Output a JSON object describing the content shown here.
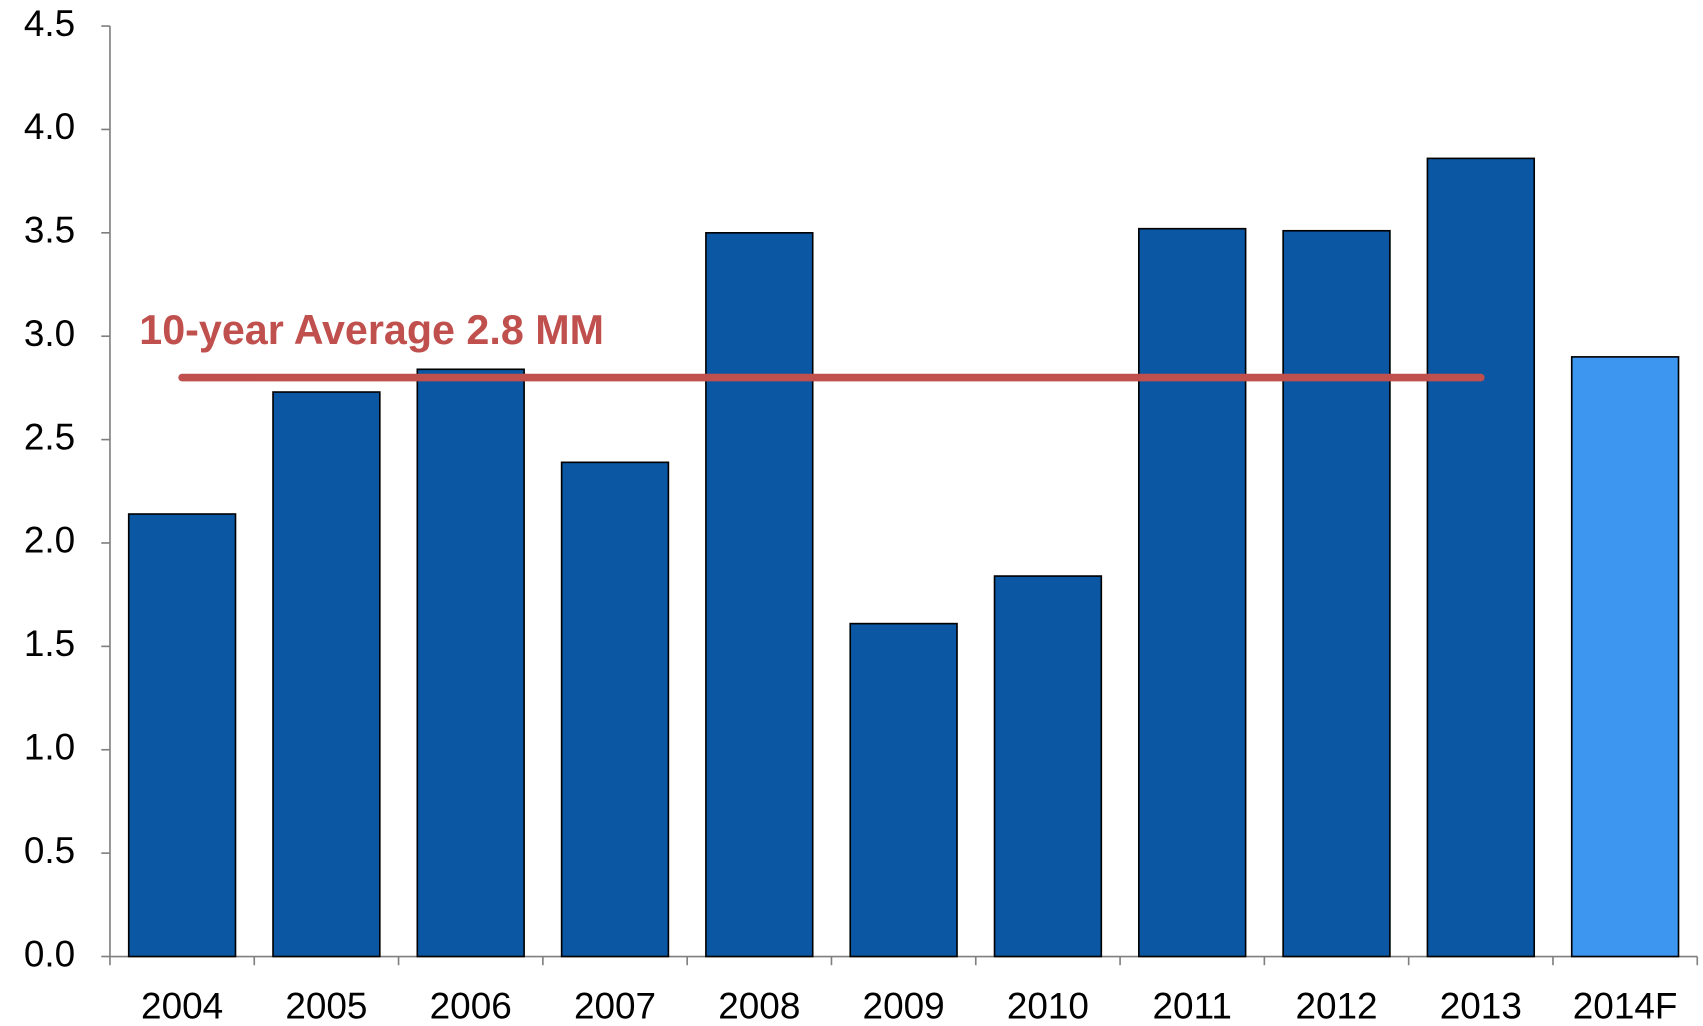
{
  "chart_data": {
    "type": "bar",
    "categories": [
      "2004",
      "2005",
      "2006",
      "2007",
      "2008",
      "2009",
      "2010",
      "2011",
      "2012",
      "2013",
      "2014F"
    ],
    "values": [
      2.14,
      2.73,
      2.84,
      2.39,
      3.5,
      1.61,
      1.84,
      3.52,
      3.51,
      3.86,
      2.9
    ],
    "colors": [
      "#0b57a4",
      "#0b57a4",
      "#0b57a4",
      "#0b57a4",
      "#0b57a4",
      "#0b57a4",
      "#0b57a4",
      "#0b57a4",
      "#0b57a4",
      "#0b57a4",
      "#3d97f0"
    ],
    "ylim": [
      0,
      4.5
    ],
    "yticks": [
      {
        "value": 0,
        "label": "0.0"
      },
      0.5,
      {
        "value": 1,
        "label": "1.0"
      },
      1.5,
      {
        "value": 2,
        "label": "2.0"
      },
      2.5,
      {
        "value": 3,
        "label": "3.0"
      },
      3.5,
      {
        "value": 4,
        "label": "4.0"
      },
      4.5
    ],
    "average": {
      "label": "10-year Average 2.8 MM",
      "value": 2.8,
      "color": "#c0504d"
    }
  }
}
